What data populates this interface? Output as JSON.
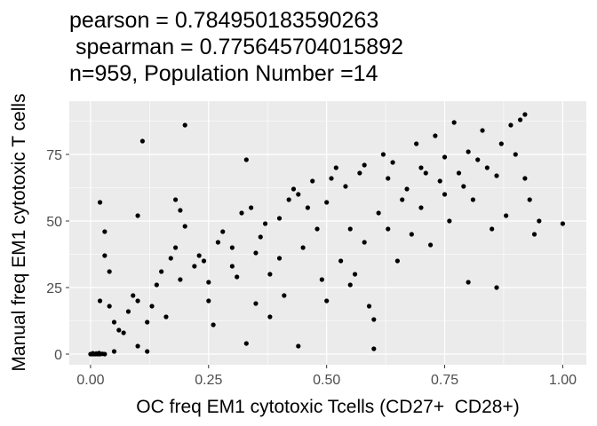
{
  "chart_data": {
    "type": "scatter",
    "title_lines": [
      "pearson = 0.784950183590263",
      " spearman = 0.775645704015892",
      "n=959, Population Number =14"
    ],
    "xlabel": "OC freq EM1 cytotoxic Tcells (CD27+  CD28+)",
    "ylabel": "Manual freq EM1 cytotoxic T cells",
    "xlim": [
      -0.045,
      1.05
    ],
    "ylim": [
      -4,
      95
    ],
    "x_ticks": [
      0.0,
      0.25,
      0.5,
      0.75,
      1.0
    ],
    "x_tick_labels": [
      "0.00",
      "0.25",
      "0.50",
      "0.75",
      "1.00"
    ],
    "y_ticks": [
      0,
      25,
      50,
      75
    ],
    "y_tick_labels": [
      "0",
      "25",
      "50",
      "75"
    ],
    "grid": true,
    "colors": {
      "panel": "#ebebeb",
      "grid": "#ffffff",
      "point": "#000000"
    },
    "points": [
      [
        0.0,
        0
      ],
      [
        0.005,
        0
      ],
      [
        0.01,
        0
      ],
      [
        0.015,
        0
      ],
      [
        0.02,
        0
      ],
      [
        0.03,
        0
      ],
      [
        0.05,
        1
      ],
      [
        0.005,
        0.3
      ],
      [
        0.012,
        0.2
      ],
      [
        0.018,
        0.4
      ],
      [
        0.025,
        0.1
      ],
      [
        0.02,
        57
      ],
      [
        0.03,
        46
      ],
      [
        0.04,
        31
      ],
      [
        0.03,
        37
      ],
      [
        0.02,
        20
      ],
      [
        0.04,
        18
      ],
      [
        0.05,
        12
      ],
      [
        0.06,
        9
      ],
      [
        0.07,
        8
      ],
      [
        0.08,
        16
      ],
      [
        0.09,
        22
      ],
      [
        0.1,
        20
      ],
      [
        0.1,
        52
      ],
      [
        0.11,
        80
      ],
      [
        0.1,
        3
      ],
      [
        0.12,
        1
      ],
      [
        0.12,
        12
      ],
      [
        0.13,
        18
      ],
      [
        0.14,
        26
      ],
      [
        0.15,
        31
      ],
      [
        0.16,
        14
      ],
      [
        0.17,
        36
      ],
      [
        0.18,
        40
      ],
      [
        0.19,
        28
      ],
      [
        0.2,
        86
      ],
      [
        0.2,
        48
      ],
      [
        0.18,
        58
      ],
      [
        0.19,
        54
      ],
      [
        0.22,
        33
      ],
      [
        0.23,
        37
      ],
      [
        0.24,
        35
      ],
      [
        0.25,
        27
      ],
      [
        0.25,
        20
      ],
      [
        0.26,
        11
      ],
      [
        0.27,
        42
      ],
      [
        0.28,
        46
      ],
      [
        0.3,
        40
      ],
      [
        0.3,
        33
      ],
      [
        0.31,
        29
      ],
      [
        0.32,
        53
      ],
      [
        0.33,
        73
      ],
      [
        0.33,
        4
      ],
      [
        0.34,
        55
      ],
      [
        0.35,
        38
      ],
      [
        0.35,
        19
      ],
      [
        0.36,
        44
      ],
      [
        0.37,
        49
      ],
      [
        0.38,
        30
      ],
      [
        0.38,
        14
      ],
      [
        0.4,
        36
      ],
      [
        0.4,
        51
      ],
      [
        0.41,
        22
      ],
      [
        0.42,
        58
      ],
      [
        0.43,
        62
      ],
      [
        0.44,
        60
      ],
      [
        0.44,
        3
      ],
      [
        0.45,
        40
      ],
      [
        0.46,
        55
      ],
      [
        0.47,
        65
      ],
      [
        0.48,
        47
      ],
      [
        0.49,
        28
      ],
      [
        0.5,
        57
      ],
      [
        0.5,
        20
      ],
      [
        0.51,
        66
      ],
      [
        0.52,
        70
      ],
      [
        0.53,
        35
      ],
      [
        0.54,
        63
      ],
      [
        0.55,
        47
      ],
      [
        0.55,
        26
      ],
      [
        0.56,
        30
      ],
      [
        0.57,
        68
      ],
      [
        0.58,
        71
      ],
      [
        0.58,
        42
      ],
      [
        0.59,
        18
      ],
      [
        0.6,
        13
      ],
      [
        0.6,
        2
      ],
      [
        0.61,
        53
      ],
      [
        0.62,
        75
      ],
      [
        0.63,
        66
      ],
      [
        0.63,
        47
      ],
      [
        0.64,
        72
      ],
      [
        0.65,
        35
      ],
      [
        0.66,
        58
      ],
      [
        0.67,
        62
      ],
      [
        0.68,
        45
      ],
      [
        0.69,
        79
      ],
      [
        0.7,
        70
      ],
      [
        0.7,
        55
      ],
      [
        0.71,
        68
      ],
      [
        0.72,
        41
      ],
      [
        0.73,
        82
      ],
      [
        0.74,
        65
      ],
      [
        0.75,
        74
      ],
      [
        0.75,
        60
      ],
      [
        0.76,
        50
      ],
      [
        0.77,
        87
      ],
      [
        0.78,
        68
      ],
      [
        0.79,
        63
      ],
      [
        0.8,
        76
      ],
      [
        0.8,
        27
      ],
      [
        0.81,
        58
      ],
      [
        0.82,
        73
      ],
      [
        0.83,
        84
      ],
      [
        0.84,
        70
      ],
      [
        0.85,
        47
      ],
      [
        0.86,
        67
      ],
      [
        0.86,
        25
      ],
      [
        0.87,
        79
      ],
      [
        0.88,
        52
      ],
      [
        0.89,
        86
      ],
      [
        0.9,
        75
      ],
      [
        0.91,
        88
      ],
      [
        0.92,
        90
      ],
      [
        0.92,
        66
      ],
      [
        0.93,
        58
      ],
      [
        0.94,
        45
      ],
      [
        0.95,
        50
      ],
      [
        1.0,
        49
      ]
    ]
  }
}
